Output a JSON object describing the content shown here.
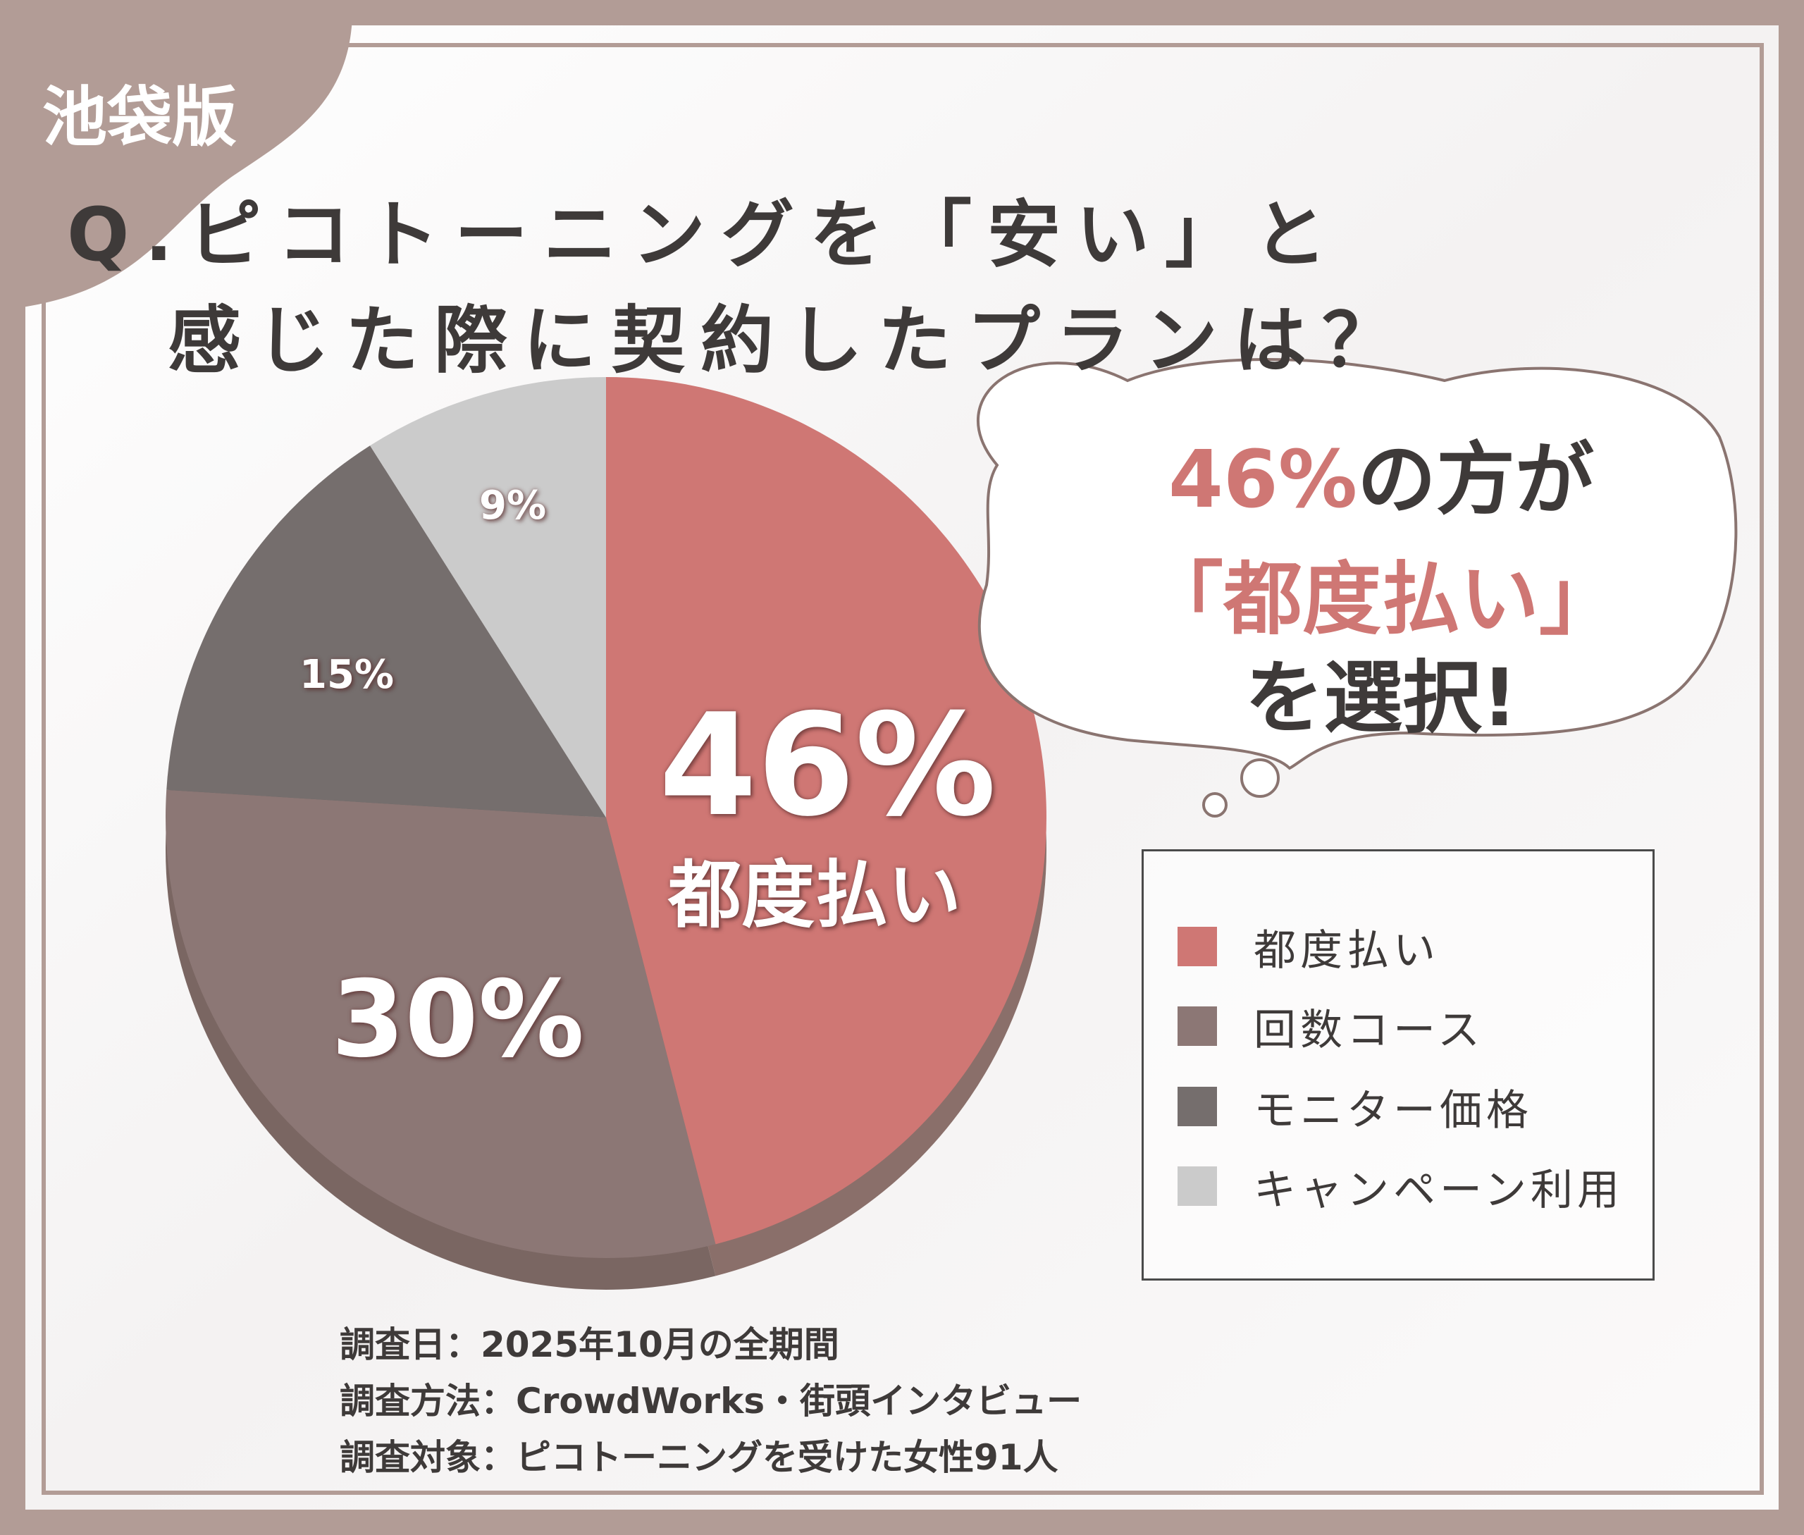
{
  "badge": "池袋版",
  "title": {
    "line1": "Q.ピコトーニングを「安い」と",
    "line2": "感じた際に契約したプランは？"
  },
  "callout": {
    "percent": "46%",
    "line1_rest": "の方が",
    "line2": "「都度払い」",
    "line3": "を選択!"
  },
  "slice_labels": {
    "s1_value": "46%",
    "s1_name": "都度払い",
    "s2_value": "30%",
    "s3_value": "15%",
    "s4_value": "9%"
  },
  "notes": [
    "調査日：2025年10月の全期間",
    "調査方法：CrowdWorks・街頭インタビュー",
    "調査対象：ピコトーニングを受けた女性91人"
  ],
  "colors": {
    "background": "#b29c96",
    "panel": "#fdfcfc",
    "accent": "#cf7774",
    "text": "#3e3a39"
  },
  "chart_data": {
    "type": "pie",
    "title": "Q.ピコトーニングを「安い」と感じた際に契約したプランは？",
    "categories": [
      "都度払い",
      "回数コース",
      "モニター価格",
      "キャンペーン利用"
    ],
    "values": [
      46,
      30,
      15,
      9
    ],
    "colors": [
      "#cf7774",
      "#8c7775",
      "#756e6d",
      "#cbcbcb"
    ],
    "unit": "%",
    "legend": "right",
    "start_angle": "top",
    "direction": "clockwise"
  }
}
